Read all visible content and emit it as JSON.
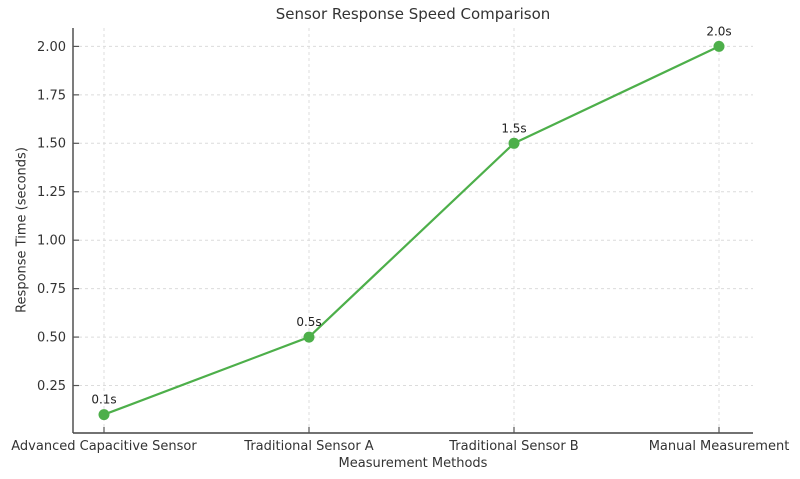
{
  "chart_data": {
    "type": "line",
    "title": "Sensor Response Speed Comparison",
    "xlabel": "Measurement Methods",
    "ylabel": "Response Time (seconds)",
    "categories": [
      "Advanced Capacitive Sensor",
      "Traditional Sensor A",
      "Traditional Sensor B",
      "Manual Measurement"
    ],
    "values": [
      0.1,
      0.5,
      1.5,
      2.0
    ],
    "point_labels": [
      "0.1s",
      "0.5s",
      "1.5s",
      "2.0s"
    ],
    "ytick_values": [
      0.25,
      0.5,
      0.75,
      1.0,
      1.25,
      1.5,
      1.75,
      2.0
    ],
    "ytick_labels": [
      "0.25",
      "0.50",
      "0.75",
      "1.00",
      "1.25",
      "1.50",
      "1.75",
      "2.00"
    ],
    "ylim": [
      0.005,
      2.095
    ],
    "grid": true,
    "grid_style": "dashed",
    "legend_position": "none",
    "colors": {
      "line": "#4daf4a",
      "marker": "#4daf4a",
      "grid": "#dcdcdc",
      "spine": "#444444",
      "tick": "#555555",
      "tick_text": "#333333",
      "annotation_text": "#222222",
      "background": "#ffffff"
    }
  }
}
